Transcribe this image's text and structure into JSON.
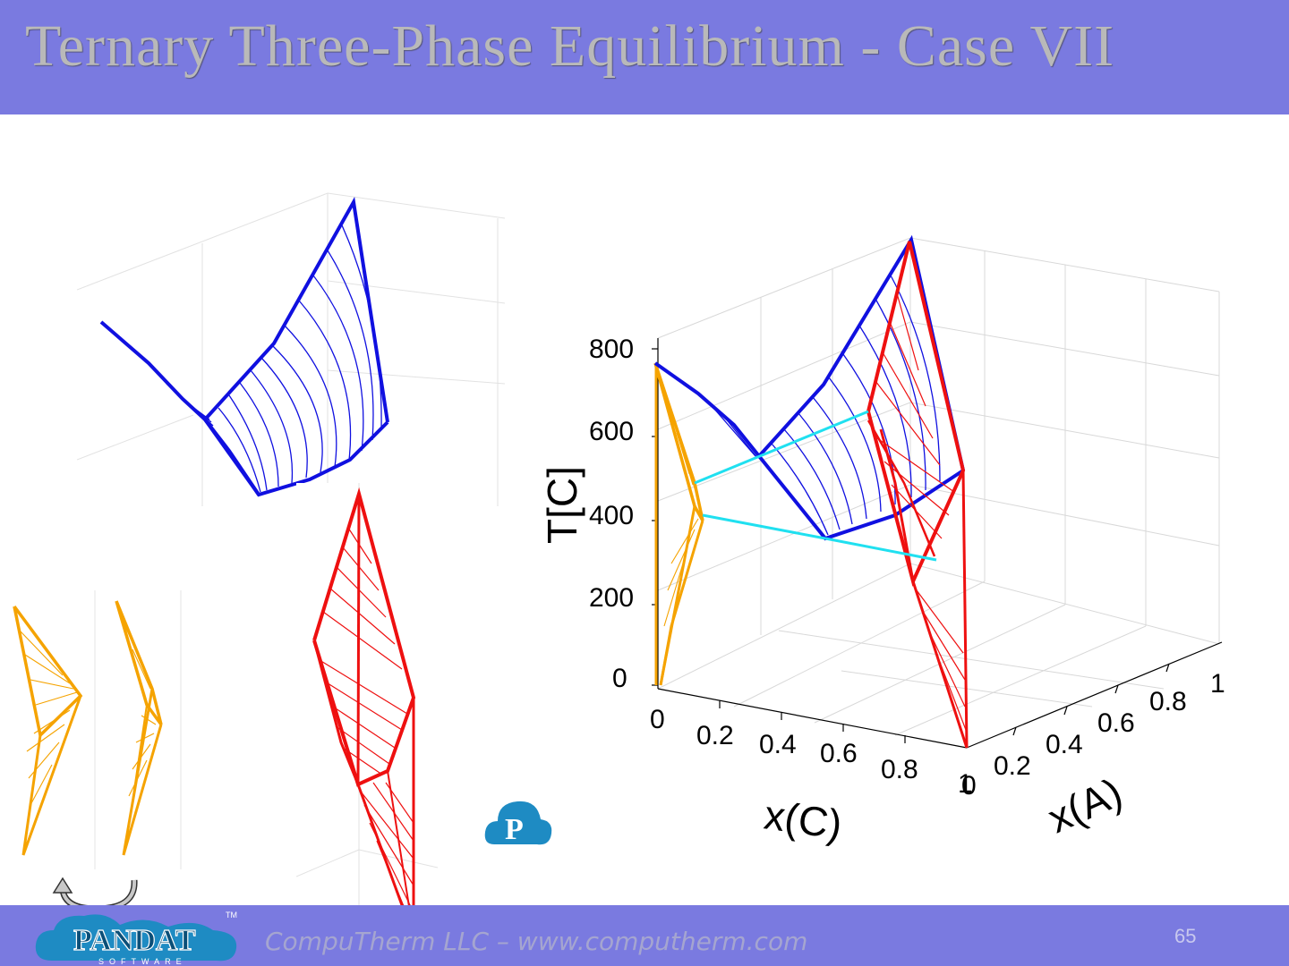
{
  "slide": {
    "title": "Ternary Three-Phase Equilibrium - Case VII",
    "footer": "CompuTherm LLC – www.computherm.com",
    "page_number": "65"
  },
  "main_chart": {
    "y_axis_label": "T[C]",
    "y_ticks": [
      "0",
      "200",
      "400",
      "600",
      "800"
    ],
    "x_axis_label": "x(C)",
    "x_ticks": [
      "0",
      "0.2",
      "0.4",
      "0.6",
      "0.8",
      "1"
    ],
    "z_axis_label": "x(A)",
    "z_ticks": [
      "0",
      "0.2",
      "0.4",
      "0.6",
      "0.8",
      "1"
    ]
  },
  "colors": {
    "band": "#7a7ae0",
    "blue_surface": "#1010e0",
    "red_surface": "#ee1010",
    "orange_surface": "#f5a300",
    "tie_line": "#20e0f0"
  },
  "icons": {
    "logo": "pandat-logo",
    "rotate": "rotate-arrow-icon",
    "software": "pandat-p-icon"
  },
  "brand": {
    "logo_text": "PANDAT",
    "logo_sub": "SOFTWARE",
    "tm": "TM"
  }
}
